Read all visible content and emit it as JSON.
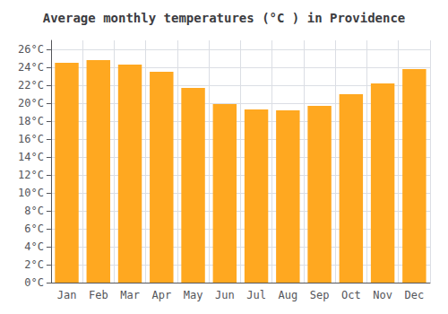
{
  "chart_data": {
    "type": "bar",
    "title": "Average monthly temperatures (°C ) in Providence",
    "categories": [
      "Jan",
      "Feb",
      "Mar",
      "Apr",
      "May",
      "Jun",
      "Jul",
      "Aug",
      "Sep",
      "Oct",
      "Nov",
      "Dec"
    ],
    "values": [
      24.5,
      24.8,
      24.3,
      23.5,
      21.7,
      19.9,
      19.3,
      19.2,
      19.7,
      21.0,
      22.2,
      23.8
    ],
    "color": "#FFA820",
    "ylim": [
      0,
      27
    ],
    "yticks": [
      {
        "value": 0,
        "label": "0°C"
      },
      {
        "value": 2,
        "label": "2°C"
      },
      {
        "value": 4,
        "label": "4°C"
      },
      {
        "value": 6,
        "label": "6°C"
      },
      {
        "value": 8,
        "label": "8°C"
      },
      {
        "value": 10,
        "label": "10°C"
      },
      {
        "value": 12,
        "label": "12°C"
      },
      {
        "value": 14,
        "label": "14°C"
      },
      {
        "value": 16,
        "label": "16°C"
      },
      {
        "value": 18,
        "label": "18°C"
      },
      {
        "value": 20,
        "label": "20°C"
      },
      {
        "value": 22,
        "label": "22°C"
      },
      {
        "value": 24,
        "label": "24°C"
      },
      {
        "value": 26,
        "label": "26°C"
      }
    ],
    "grid": true
  }
}
